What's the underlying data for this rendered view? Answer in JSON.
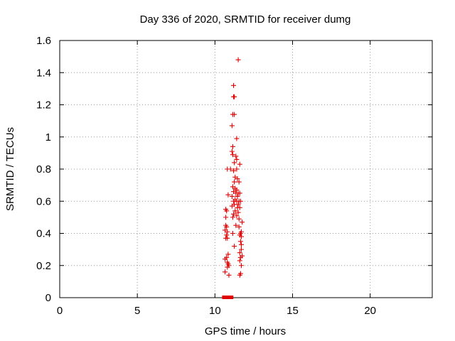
{
  "chart_data": {
    "type": "scatter",
    "title": "Day 336 of 2020, SRMTID for receiver dumg",
    "xlabel": "GPS time / hours",
    "ylabel": "SRMTID / TECUs",
    "xlim": [
      0,
      24
    ],
    "ylim": [
      0,
      1.6
    ],
    "x_ticks": [
      0,
      5,
      10,
      15,
      20
    ],
    "x_tick_labels": [
      "0",
      "5",
      "10",
      "15",
      "20"
    ],
    "y_ticks": [
      0,
      0.2,
      0.4,
      0.6,
      0.8,
      1,
      1.2,
      1.4,
      1.6
    ],
    "y_tick_labels": [
      "0",
      "0.2",
      "0.4",
      "0.6",
      "0.8",
      "1",
      "1.2",
      "1.4",
      "1.6"
    ],
    "grid": true,
    "marker": "plus",
    "color": "#e00000",
    "zero_markers": [
      {
        "x": 10.6,
        "y": 0
      },
      {
        "x": 10.75,
        "y": 0
      },
      {
        "x": 11.0,
        "y": 0
      },
      {
        "x": 11.05,
        "y": 0
      }
    ],
    "series": [
      {
        "name": "SRMTID",
        "points": [
          [
            11.5,
            1.48
          ],
          [
            11.2,
            1.32
          ],
          [
            11.2,
            1.25
          ],
          [
            11.25,
            1.25
          ],
          [
            11.15,
            1.14
          ],
          [
            11.25,
            1.14
          ],
          [
            11.1,
            1.07
          ],
          [
            11.4,
            0.99
          ],
          [
            11.15,
            0.94
          ],
          [
            11.1,
            0.91
          ],
          [
            11.15,
            0.89
          ],
          [
            11.35,
            0.88
          ],
          [
            11.4,
            0.86
          ],
          [
            11.25,
            0.84
          ],
          [
            11.6,
            0.83
          ],
          [
            10.8,
            0.8
          ],
          [
            11.0,
            0.8
          ],
          [
            11.2,
            0.79
          ],
          [
            11.4,
            0.8
          ],
          [
            11.3,
            0.75
          ],
          [
            11.45,
            0.74
          ],
          [
            11.25,
            0.72
          ],
          [
            11.55,
            0.72
          ],
          [
            11.15,
            0.69
          ],
          [
            11.3,
            0.68
          ],
          [
            11.4,
            0.67
          ],
          [
            11.2,
            0.66
          ],
          [
            11.35,
            0.65
          ],
          [
            11.5,
            0.65
          ],
          [
            11.6,
            0.65
          ],
          [
            10.85,
            0.64
          ],
          [
            11.1,
            0.63
          ],
          [
            11.45,
            0.63
          ],
          [
            11.3,
            0.61
          ],
          [
            11.2,
            0.6
          ],
          [
            11.4,
            0.6
          ],
          [
            11.55,
            0.6
          ],
          [
            11.65,
            0.6
          ],
          [
            11.25,
            0.58
          ],
          [
            11.5,
            0.58
          ],
          [
            11.1,
            0.57
          ],
          [
            11.45,
            0.56
          ],
          [
            11.6,
            0.56
          ],
          [
            10.7,
            0.55
          ],
          [
            10.75,
            0.54
          ],
          [
            11.3,
            0.54
          ],
          [
            11.5,
            0.53
          ],
          [
            11.2,
            0.52
          ],
          [
            11.4,
            0.51
          ],
          [
            10.7,
            0.5
          ],
          [
            11.15,
            0.5
          ],
          [
            11.55,
            0.49
          ],
          [
            11.75,
            0.47
          ],
          [
            11.35,
            0.45
          ],
          [
            10.7,
            0.45
          ],
          [
            10.75,
            0.44
          ],
          [
            11.55,
            0.44
          ],
          [
            10.65,
            0.42
          ],
          [
            10.8,
            0.41
          ],
          [
            11.7,
            0.41
          ],
          [
            11.65,
            0.4
          ],
          [
            11.15,
            0.4
          ],
          [
            10.75,
            0.39
          ],
          [
            11.6,
            0.39
          ],
          [
            11.7,
            0.38
          ],
          [
            10.7,
            0.37
          ],
          [
            10.8,
            0.37
          ],
          [
            11.65,
            0.35
          ],
          [
            11.7,
            0.33
          ],
          [
            11.25,
            0.32
          ],
          [
            11.7,
            0.3
          ],
          [
            11.6,
            0.28
          ],
          [
            10.85,
            0.27
          ],
          [
            11.75,
            0.26
          ],
          [
            10.75,
            0.25
          ],
          [
            11.65,
            0.25
          ],
          [
            10.65,
            0.24
          ],
          [
            11.6,
            0.23
          ],
          [
            10.8,
            0.22
          ],
          [
            10.85,
            0.21
          ],
          [
            10.9,
            0.2
          ],
          [
            11.7,
            0.2
          ],
          [
            10.8,
            0.19
          ],
          [
            10.65,
            0.16
          ],
          [
            10.9,
            0.14
          ],
          [
            11.6,
            0.14
          ],
          [
            11.65,
            0.15
          ]
        ]
      }
    ]
  }
}
